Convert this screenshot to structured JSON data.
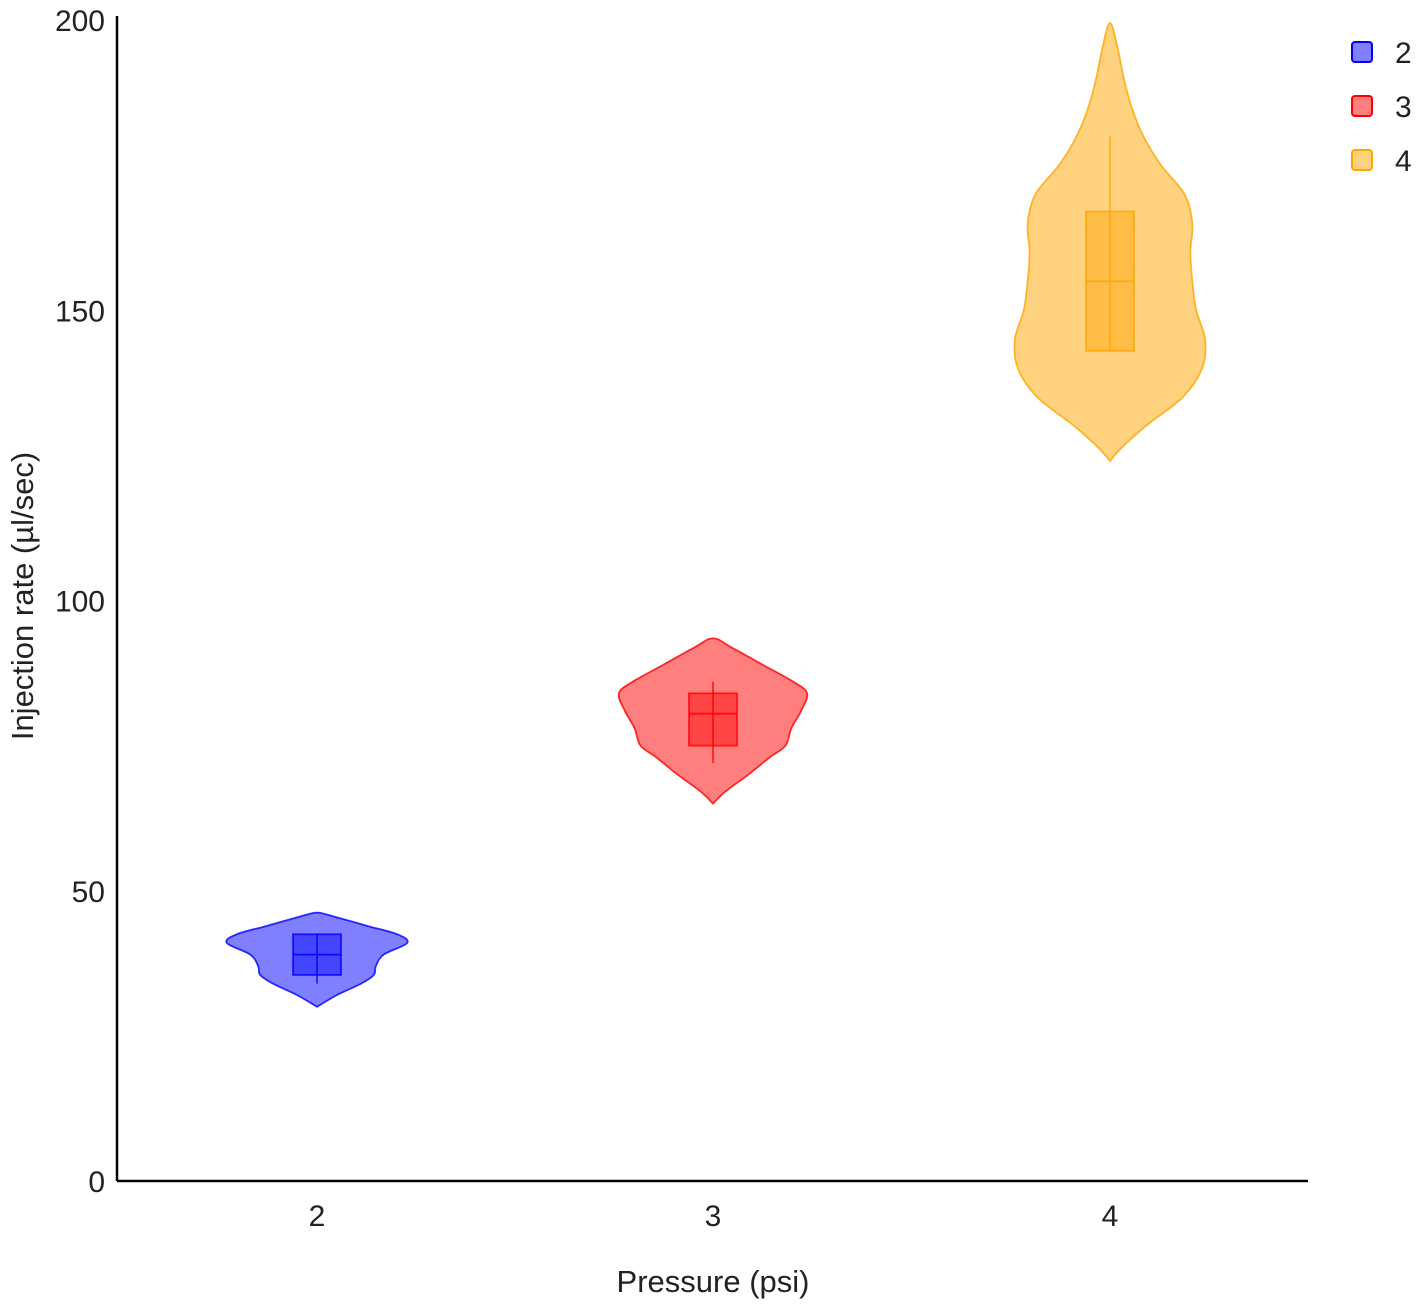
{
  "chart_data": {
    "type": "violin",
    "xlabel": "Pressure (psi)",
    "ylabel": "Injection rate (µl/sec)",
    "ylim": [
      0,
      200
    ],
    "yticks": [
      0,
      50,
      100,
      150,
      200
    ],
    "categories": [
      "2",
      "3",
      "4"
    ],
    "legend": {
      "position": "top-right",
      "entries": [
        "2",
        "3",
        "4"
      ]
    },
    "grid": false,
    "series": [
      {
        "name": "2",
        "color": "#0000ff",
        "box": {
          "min": 34,
          "q1": 35.5,
          "median": 39,
          "q3": 42.5,
          "max": 42.5
        },
        "violin": [
          [
            30,
            0.0
          ],
          [
            32,
            0.2
          ],
          [
            34,
            0.45
          ],
          [
            35.5,
            0.58
          ],
          [
            37,
            0.6
          ],
          [
            39,
            0.68
          ],
          [
            41,
            0.92
          ],
          [
            42.5,
            0.82
          ],
          [
            44,
            0.5
          ],
          [
            46,
            0.08
          ],
          [
            46.2,
            0.0
          ]
        ]
      },
      {
        "name": "3",
        "color": "#ff0000",
        "box": {
          "min": 72,
          "q1": 75,
          "median": 80.5,
          "q3": 84,
          "max": 86
        },
        "violin": [
          [
            65,
            0.0
          ],
          [
            67,
            0.12
          ],
          [
            70,
            0.36
          ],
          [
            73,
            0.58
          ],
          [
            75,
            0.74
          ],
          [
            78,
            0.8
          ],
          [
            81,
            0.9
          ],
          [
            84,
            0.96
          ],
          [
            86,
            0.82
          ],
          [
            89,
            0.5
          ],
          [
            92,
            0.18
          ],
          [
            93.5,
            0.0
          ]
        ]
      },
      {
        "name": "4",
        "color": "#ffa500",
        "box": {
          "min": 143,
          "q1": 143,
          "median": 155,
          "q3": 167,
          "max": 180
        },
        "violin": [
          [
            124,
            0.0
          ],
          [
            126,
            0.1
          ],
          [
            130,
            0.36
          ],
          [
            135,
            0.74
          ],
          [
            140,
            0.94
          ],
          [
            145,
            0.97
          ],
          [
            150,
            0.88
          ],
          [
            155,
            0.84
          ],
          [
            160,
            0.82
          ],
          [
            165,
            0.84
          ],
          [
            170,
            0.76
          ],
          [
            175,
            0.52
          ],
          [
            180,
            0.34
          ],
          [
            185,
            0.22
          ],
          [
            190,
            0.14
          ],
          [
            195,
            0.08
          ],
          [
            199.5,
            0.0
          ]
        ]
      }
    ]
  }
}
